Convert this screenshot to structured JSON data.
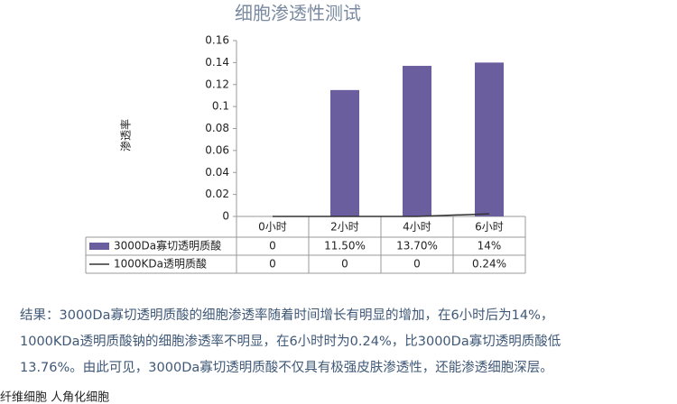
{
  "chart_data": {
    "type": "bar",
    "title": "细胞渗透性测试",
    "y_label": "渗透率",
    "categories": [
      "0小时",
      "2小时",
      "4小时",
      "6小时"
    ],
    "series": [
      {
        "name": "3000Da寡切透明质酸",
        "color": "#6a5e9e",
        "type": "bar",
        "values": [
          0,
          0.115,
          0.137,
          0.14
        ],
        "value_labels": [
          "0",
          "11.50%",
          "13.70%",
          "14%"
        ]
      },
      {
        "name": "1000KDa透明质酸",
        "color": "#333333",
        "type": "line",
        "values": [
          0,
          0,
          0,
          0.0024
        ],
        "value_labels": [
          "0",
          "0",
          "0",
          "0.24%"
        ]
      }
    ],
    "ylim": [
      0,
      0.16
    ],
    "yticks": [
      0,
      0.02,
      0.04,
      0.06,
      0.08,
      0.1,
      0.12,
      0.14,
      0.16
    ],
    "grid": false
  },
  "result_lines": [
    "结果：3000Da寡切透明质酸的细胞渗透率随着时间增长有明显的增加，在6小时后为14%，",
    "1000KDa透明质酸钠的细胞渗透率不明显，在6小时时为0.24%，比3000Da寡切透明质酸低",
    "13.76%。由此可见，3000Da寡切透明质酸不仅具有极强皮肤渗透性，还能渗透细胞深层。"
  ],
  "footer": "纤维细胞    人角化细胞"
}
